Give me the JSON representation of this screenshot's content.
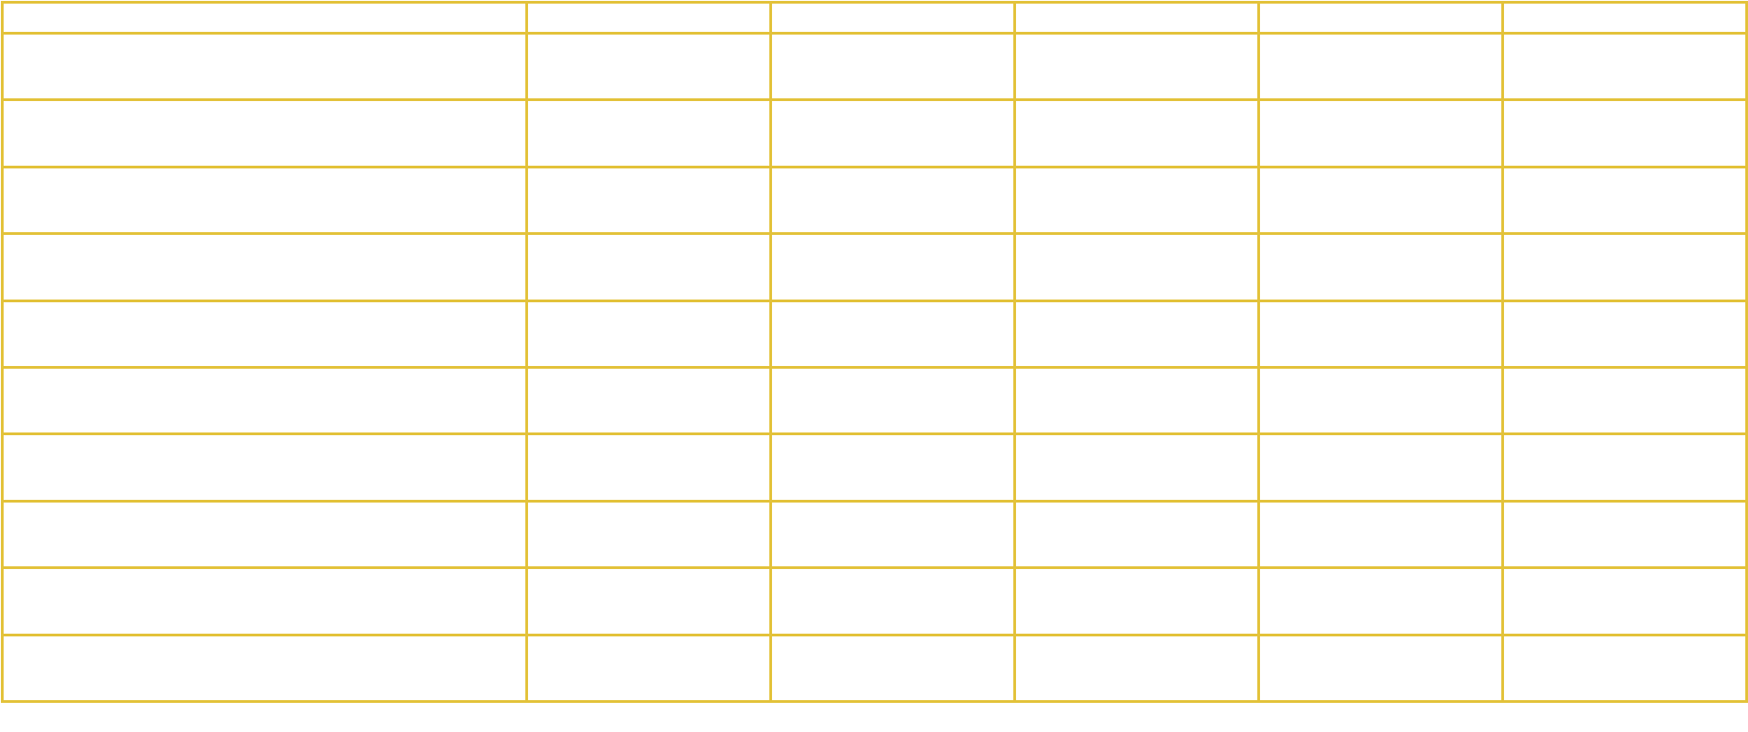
{
  "table": {
    "border_color": "#e3c23a",
    "header": [
      "",
      "",
      "",
      "",
      "",
      ""
    ],
    "rows": [
      [
        "",
        "",
        "",
        "",
        "",
        ""
      ],
      [
        "",
        "",
        "",
        "",
        "",
        ""
      ],
      [
        "",
        "",
        "",
        "",
        "",
        ""
      ],
      [
        "",
        "",
        "",
        "",
        "",
        ""
      ],
      [
        "",
        "",
        "",
        "",
        "",
        ""
      ],
      [
        "",
        "",
        "",
        "",
        "",
        ""
      ],
      [
        "",
        "",
        "",
        "",
        "",
        ""
      ],
      [
        "",
        "",
        "",
        "",
        "",
        ""
      ],
      [
        "",
        "",
        "",
        "",
        "",
        ""
      ],
      [
        "",
        "",
        "",
        "",
        "",
        ""
      ]
    ]
  }
}
